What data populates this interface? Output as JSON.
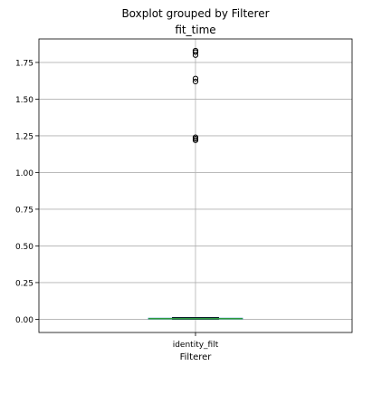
{
  "chart_data": {
    "type": "boxplot",
    "suptitle": "Boxplot grouped by Filterer",
    "title": "fit_time",
    "xlabel": "Filterer",
    "ylabel": "",
    "categories": [
      "identity_filt"
    ],
    "ylim": [
      -0.09,
      1.91
    ],
    "yticks": [
      0.0,
      0.25,
      0.5,
      0.75,
      1.0,
      1.25,
      1.5,
      1.75
    ],
    "ytick_labels": [
      "0.00",
      "0.25",
      "0.50",
      "0.75",
      "1.00",
      "1.25",
      "1.50",
      "1.75"
    ],
    "grid": true,
    "boxes": [
      {
        "category": "identity_filt",
        "whisker_low": 0.0,
        "q1": 0.002,
        "median": 0.004,
        "q3": 0.007,
        "whisker_high": 0.012,
        "outliers": [
          1.22,
          1.23,
          1.24,
          1.62,
          1.64,
          1.8,
          1.82,
          1.83
        ]
      }
    ],
    "colors": {
      "box": "#1f77b4",
      "median": "#2ca02c",
      "whisker": "#000000",
      "grid": "#b0b0b0",
      "outlier": "#000000"
    }
  }
}
